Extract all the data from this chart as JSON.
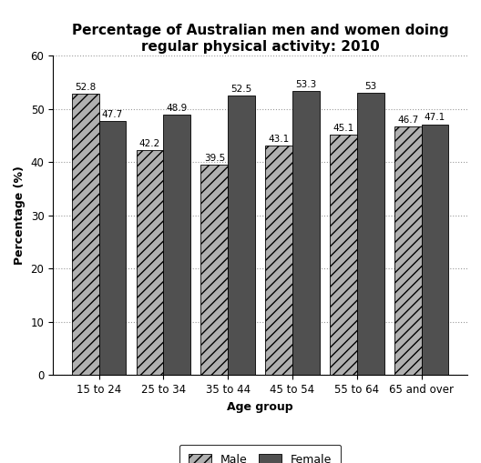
{
  "title": "Percentage of Australian men and women doing\nregular physical activity: 2010",
  "xlabel": "Age group",
  "ylabel": "Percentage (%)",
  "categories": [
    "15 to 24",
    "25 to 34",
    "35 to 44",
    "45 to 54",
    "55 to 64",
    "65 and over"
  ],
  "male_values": [
    52.8,
    42.2,
    39.5,
    43.1,
    45.1,
    46.7
  ],
  "female_values": [
    47.7,
    48.9,
    52.5,
    53.3,
    53.0,
    47.1
  ],
  "ylim": [
    0,
    60
  ],
  "yticks": [
    0,
    10,
    20,
    30,
    40,
    50,
    60
  ],
  "male_color": "#b0b0b0",
  "female_color": "#505050",
  "male_hatch": "///",
  "female_hatch": "",
  "bar_width": 0.42,
  "legend_labels": [
    "Male",
    "Female"
  ],
  "title_fontsize": 11,
  "label_fontsize": 9,
  "tick_fontsize": 8.5,
  "value_fontsize": 7.5
}
